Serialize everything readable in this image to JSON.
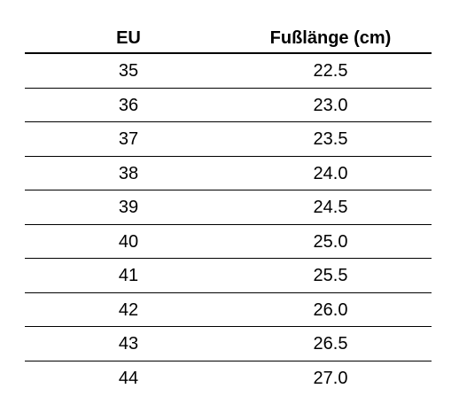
{
  "table": {
    "header": [
      "EU",
      "Fußlänge (cm)"
    ],
    "rows": [
      [
        "35",
        "22.5"
      ],
      [
        "36",
        "23.0"
      ],
      [
        "37",
        "23.5"
      ],
      [
        "38",
        "24.0"
      ],
      [
        "39",
        "24.5"
      ],
      [
        "40",
        "25.0"
      ],
      [
        "41",
        "25.5"
      ],
      [
        "42",
        "26.0"
      ],
      [
        "43",
        "26.5"
      ],
      [
        "44",
        "27.0"
      ]
    ]
  }
}
